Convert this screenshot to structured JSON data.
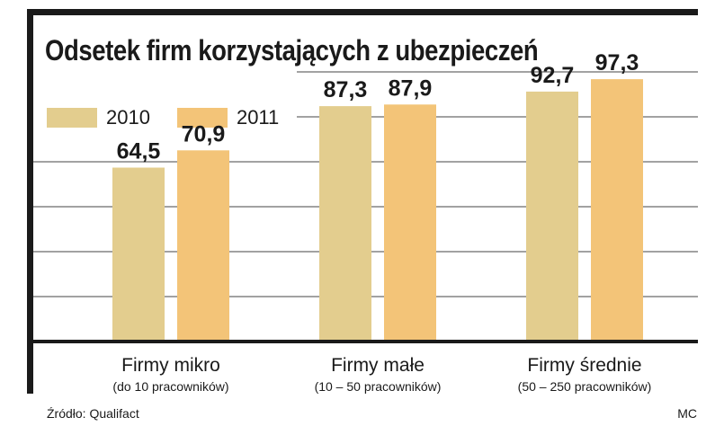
{
  "chart_data": {
    "type": "bar",
    "title": "Odsetek firm korzystających z ubezpieczeń",
    "categories": [
      "Firmy mikro",
      "Firmy małe",
      "Firmy średnie"
    ],
    "subcategories": [
      "(do 10 pracowników)",
      "(10 – 50 pracowników)",
      "(50 – 250 pracowników)"
    ],
    "series": [
      {
        "name": "2010",
        "values": [
          64.5,
          87.3,
          92.7
        ],
        "labels": [
          "64,5",
          "87,3",
          "92,7"
        ],
        "color": "#e3cd8e"
      },
      {
        "name": "2011",
        "values": [
          70.9,
          87.9,
          97.3
        ],
        "labels": [
          "70,9",
          "87,9",
          "97,3"
        ],
        "color": "#f3c478"
      }
    ],
    "ylim": [
      0,
      100
    ],
    "grid": true,
    "legend": "top-left"
  },
  "source": "Źródło: Qualifact",
  "author": "MC",
  "colors": {
    "frame": "#1a1a1a",
    "grid": "#444444"
  }
}
